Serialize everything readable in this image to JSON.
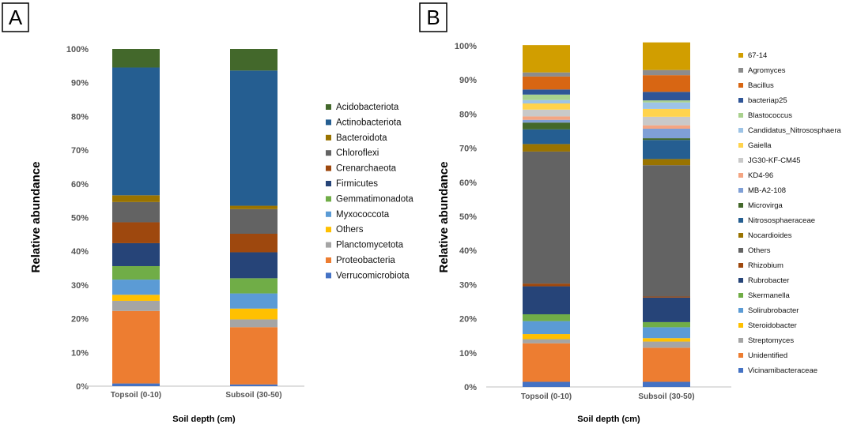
{
  "chart_data": [
    {
      "panel": "A",
      "type": "bar",
      "stacked": true,
      "ylabel": "Relative abundance",
      "xlabel": "Soil depth (cm)",
      "ylim": [
        0,
        100
      ],
      "yticks": [
        "0%",
        "10%",
        "20%",
        "30%",
        "40%",
        "50%",
        "60%",
        "70%",
        "80%",
        "90%",
        "100%"
      ],
      "categories": [
        "Topsoil (0-10)",
        "Subsoil (30-50)"
      ],
      "legend_position": "right",
      "series": [
        {
          "name": "Verrucomicrobiota",
          "color": "#4472c4",
          "values": [
            0.8,
            0.5
          ]
        },
        {
          "name": "Proteobacteria",
          "color": "#ed7d31",
          "values": [
            21.5,
            17.0
          ]
        },
        {
          "name": "Planctomycetota",
          "color": "#a5a5a5",
          "values": [
            3.0,
            2.3
          ]
        },
        {
          "name": "Others",
          "color": "#ffc000",
          "values": [
            1.8,
            3.2
          ]
        },
        {
          "name": "Myxococcota",
          "color": "#5b9bd5",
          "values": [
            4.5,
            4.5
          ]
        },
        {
          "name": "Gemmatimonadota",
          "color": "#70ad47",
          "values": [
            4.0,
            4.5
          ]
        },
        {
          "name": "Firmicutes",
          "color": "#264478",
          "values": [
            6.8,
            7.7
          ]
        },
        {
          "name": "Crenarchaeota",
          "color": "#9e480e",
          "values": [
            6.2,
            5.5
          ]
        },
        {
          "name": "Chloroflexi",
          "color": "#636363",
          "values": [
            6.0,
            7.3
          ]
        },
        {
          "name": "Bacteroidota",
          "color": "#997300",
          "values": [
            2.0,
            1.0
          ]
        },
        {
          "name": "Actinobacteriota",
          "color": "#255e91",
          "values": [
            37.9,
            40.1
          ]
        },
        {
          "name": "Acidobacteriota",
          "color": "#43682b",
          "values": [
            5.5,
            6.4
          ]
        }
      ]
    },
    {
      "panel": "B",
      "type": "bar",
      "stacked": true,
      "ylabel": "Relative abundance",
      "xlabel": "Soil depth (cm)",
      "ylim": [
        0,
        100
      ],
      "yticks": [
        "0%",
        "10%",
        "20%",
        "30%",
        "40%",
        "50%",
        "60%",
        "70%",
        "80%",
        "90%",
        "100%"
      ],
      "categories": [
        "Topsoil (0-10)",
        "Subsoil (30-50)"
      ],
      "legend_position": "right",
      "series": [
        {
          "name": "Vicinamibacteraceae",
          "color": "#4472c4",
          "values": [
            1.5,
            1.5
          ]
        },
        {
          "name": "Unidentified",
          "color": "#ed7d31",
          "values": [
            11.3,
            10.0
          ]
        },
        {
          "name": "Streptomyces",
          "color": "#a5a5a5",
          "values": [
            1.2,
            1.8
          ]
        },
        {
          "name": "Steroidobacter",
          "color": "#ffc000",
          "values": [
            1.5,
            1.0
          ]
        },
        {
          "name": "Solirubrobacter",
          "color": "#5b9bd5",
          "values": [
            3.8,
            3.2
          ]
        },
        {
          "name": "Skermanella",
          "color": "#70ad47",
          "values": [
            2.0,
            1.5
          ]
        },
        {
          "name": "Rubrobacter",
          "color": "#264478",
          "values": [
            8.2,
            7.2
          ]
        },
        {
          "name": "Rhizobium",
          "color": "#9e480e",
          "values": [
            0.8,
            0.3
          ]
        },
        {
          "name": "Others",
          "color": "#636363",
          "values": [
            38.7,
            38.5
          ]
        },
        {
          "name": "Nocardioides",
          "color": "#997300",
          "values": [
            2.2,
            1.8
          ]
        },
        {
          "name": "Nitrososphaeraceae",
          "color": "#255e91",
          "values": [
            4.3,
            5.6
          ]
        },
        {
          "name": "Microvirga",
          "color": "#43682b",
          "values": [
            2.0,
            0.5
          ]
        },
        {
          "name": "MB-A2-108",
          "color": "#7f9fd6",
          "values": [
            0.8,
            2.8
          ]
        },
        {
          "name": "KD4-96",
          "color": "#f4a582",
          "values": [
            1.0,
            1.0
          ]
        },
        {
          "name": "JG30-KF-CM45",
          "color": "#c9c9c9",
          "values": [
            2.0,
            2.5
          ]
        },
        {
          "name": "Gaiella",
          "color": "#ffd34d",
          "values": [
            1.8,
            2.3
          ]
        },
        {
          "name": "Candidatus_Nitrososphaera",
          "color": "#9dc3e6",
          "values": [
            1.0,
            1.9
          ]
        },
        {
          "name": "Blastococcus",
          "color": "#a9d18e",
          "values": [
            1.6,
            0.6
          ]
        },
        {
          "name": "bacteriap25",
          "color": "#2f5597",
          "values": [
            1.5,
            2.5
          ]
        },
        {
          "name": "Bacillus",
          "color": "#d86613",
          "values": [
            3.8,
            4.9
          ]
        },
        {
          "name": "Agromyces",
          "color": "#8c8c8c",
          "values": [
            1.2,
            1.5
          ]
        },
        {
          "name": "67-14",
          "color": "#d19e00",
          "values": [
            8.0,
            8.1
          ]
        }
      ]
    }
  ]
}
